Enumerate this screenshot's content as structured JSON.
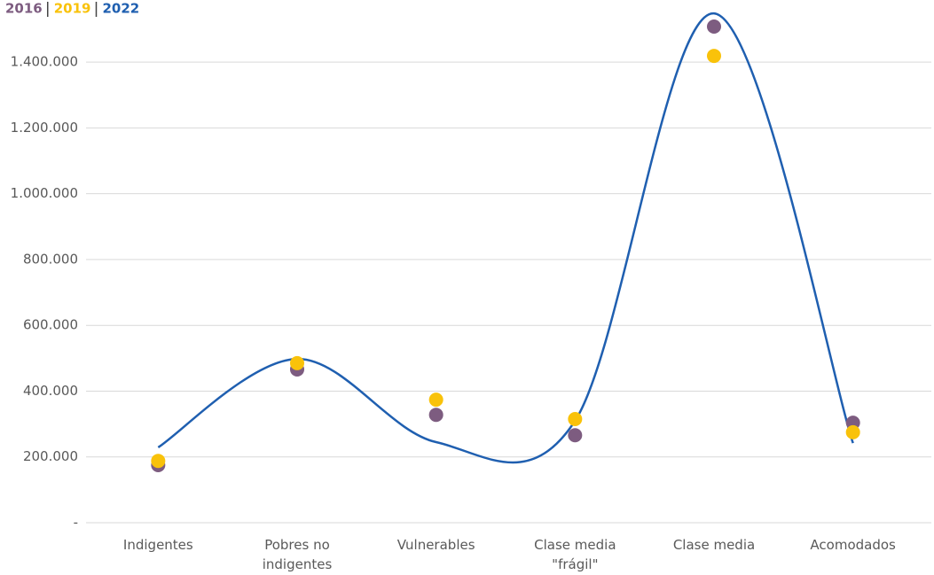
{
  "chart_data": {
    "type": "scatter-line",
    "categories": [
      "Indigentes",
      "Pobres no indigentes",
      "Vulnerables",
      "Clase media \"frágil\"",
      "Clase media",
      "Acomodados"
    ],
    "series": [
      {
        "name": "2016",
        "color": "#7d5c80",
        "style": "markers",
        "values": [
          175000,
          466000,
          328000,
          266000,
          1508000,
          304000
        ]
      },
      {
        "name": "2019",
        "color": "#f9c20a",
        "style": "markers",
        "values": [
          188000,
          485000,
          374000,
          315000,
          1419000,
          275000
        ]
      },
      {
        "name": "2022",
        "color": "#1f5fb0",
        "style": "smooth-line",
        "values": [
          229000,
          498000,
          245000,
          310000,
          1548000,
          242000
        ]
      }
    ],
    "ylim": [
      0,
      1500000
    ],
    "yticks": [
      {
        "value": 0,
        "label": "-"
      },
      {
        "value": 200000,
        "label": "200.000"
      },
      {
        "value": 400000,
        "label": "400.000"
      },
      {
        "value": 600000,
        "label": "600.000"
      },
      {
        "value": 800000,
        "label": "800.000"
      },
      {
        "value": 1000000,
        "label": "1.000.000"
      },
      {
        "value": 1200000,
        "label": "1.200.000"
      },
      {
        "value": 1400000,
        "label": "1.400.000"
      }
    ],
    "grid": true
  }
}
